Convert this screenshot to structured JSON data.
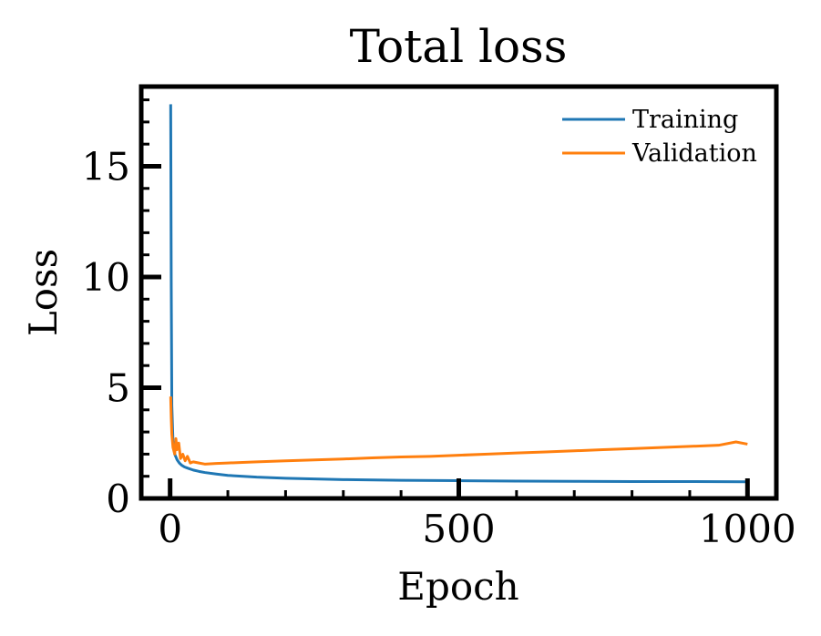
{
  "chart_data": {
    "type": "line",
    "title": "Total loss",
    "xlabel": "Epoch",
    "ylabel": "Loss",
    "xlim": [
      -50,
      1050
    ],
    "ylim": [
      0,
      18.6
    ],
    "x_ticks": [
      0,
      500,
      1000
    ],
    "y_ticks": [
      0,
      5,
      10,
      15
    ],
    "grid": false,
    "legend_position": "top-right",
    "series": [
      {
        "name": "Training",
        "color": "#1f77b4",
        "x": [
          1,
          2,
          3,
          5,
          8,
          12,
          16,
          20,
          25,
          30,
          40,
          50,
          60,
          80,
          100,
          150,
          200,
          300,
          400,
          500,
          600,
          700,
          800,
          900,
          1000
        ],
        "y": [
          17.8,
          9.5,
          4.2,
          2.6,
          2.0,
          1.75,
          1.6,
          1.5,
          1.42,
          1.37,
          1.28,
          1.22,
          1.17,
          1.1,
          1.04,
          0.96,
          0.91,
          0.85,
          0.82,
          0.8,
          0.78,
          0.77,
          0.76,
          0.76,
          0.75
        ]
      },
      {
        "name": "Validation",
        "color": "#ff7f0e",
        "x": [
          1,
          2,
          3,
          5,
          8,
          10,
          12,
          15,
          18,
          22,
          26,
          30,
          35,
          40,
          50,
          60,
          80,
          100,
          150,
          200,
          250,
          300,
          350,
          400,
          450,
          500,
          550,
          600,
          650,
          700,
          750,
          800,
          850,
          900,
          950,
          980,
          1000
        ],
        "y": [
          4.6,
          3.6,
          2.9,
          2.3,
          2.0,
          2.7,
          2.2,
          2.5,
          1.8,
          2.0,
          1.7,
          1.9,
          1.6,
          1.65,
          1.6,
          1.55,
          1.58,
          1.6,
          1.65,
          1.7,
          1.74,
          1.78,
          1.83,
          1.87,
          1.9,
          1.95,
          2.0,
          2.05,
          2.1,
          2.15,
          2.2,
          2.25,
          2.3,
          2.35,
          2.4,
          2.55,
          2.45
        ]
      }
    ]
  }
}
